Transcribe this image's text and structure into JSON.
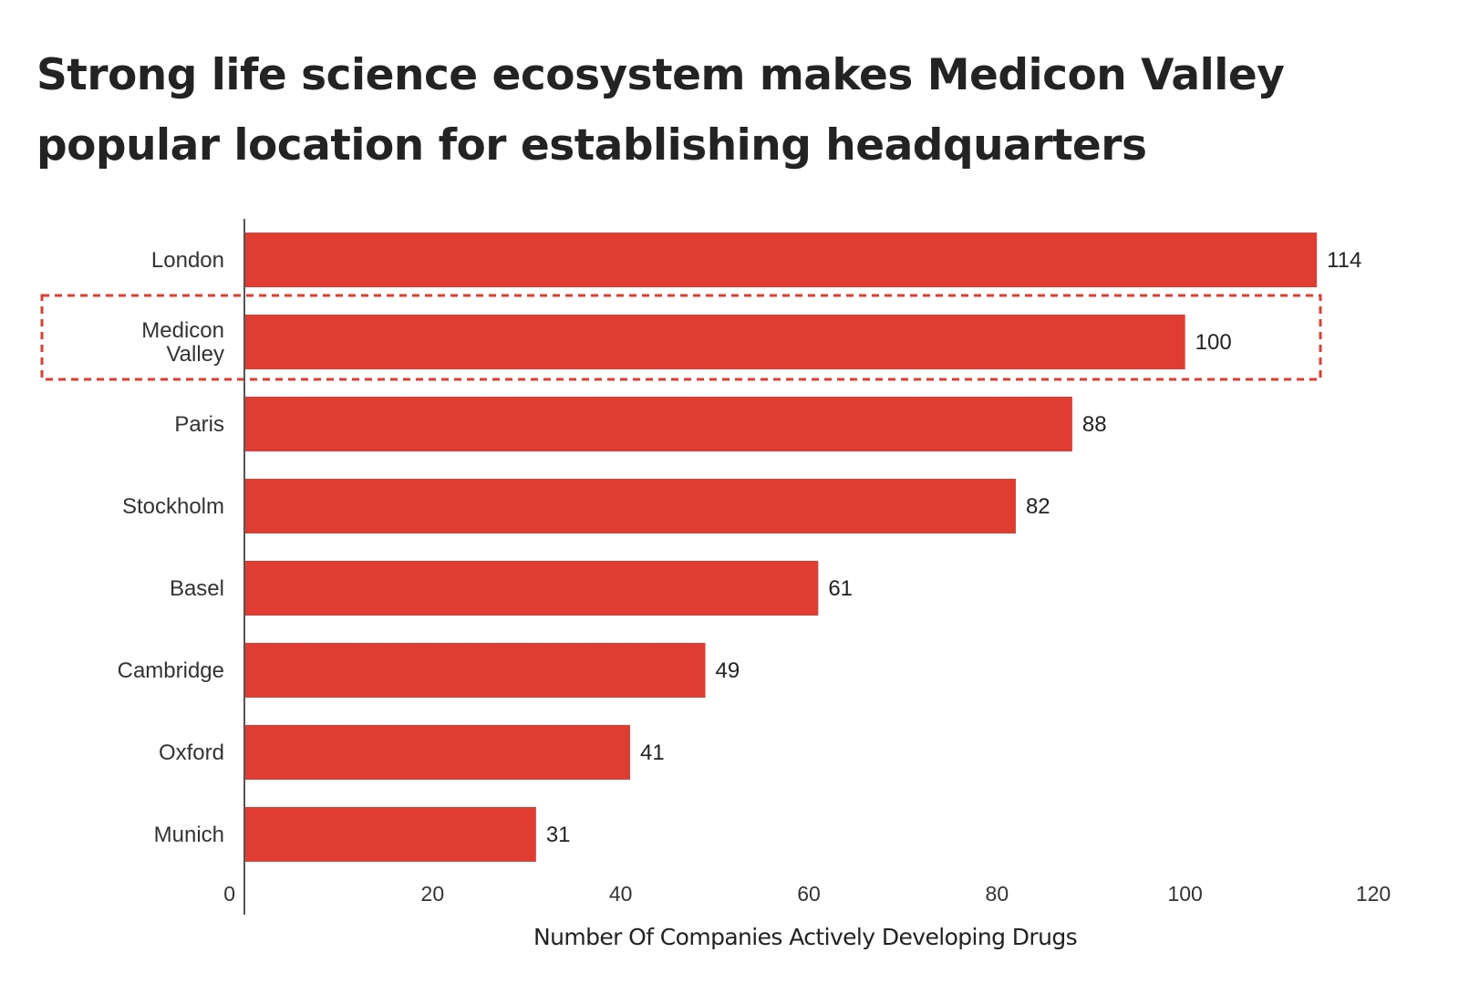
{
  "colors": {
    "bar": "#e03c31",
    "highlight_border": "#e03c31",
    "axis": "#555555"
  },
  "chart_data": {
    "type": "bar",
    "orientation": "horizontal",
    "title": "Strong life science ecosystem makes Medicon Valley popular location for establishing headquarters",
    "categories": [
      "London",
      "Medicon Valley",
      "Paris",
      "Stockholm",
      "Basel",
      "Cambridge",
      "Oxford",
      "Munich"
    ],
    "category_lines": [
      [
        "London"
      ],
      [
        "Medicon",
        "Valley"
      ],
      [
        "Paris"
      ],
      [
        "Stockholm"
      ],
      [
        "Basel"
      ],
      [
        "Cambridge"
      ],
      [
        "Oxford"
      ],
      [
        "Munich"
      ]
    ],
    "values": [
      114,
      100,
      88,
      82,
      61,
      49,
      41,
      31
    ],
    "highlighted_category": "Medicon Valley",
    "xlabel": "Number Of Companies Actively Developing Drugs",
    "ylabel": "",
    "xlim": [
      0,
      120
    ],
    "xticks": [
      0,
      20,
      40,
      60,
      80,
      100,
      120
    ],
    "grid": false,
    "legend": "none"
  }
}
